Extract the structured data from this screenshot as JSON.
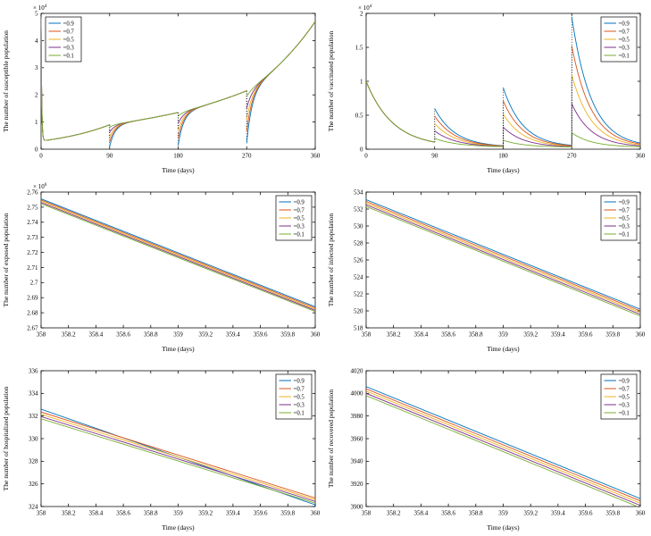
{
  "figure": {
    "background": "#ffffff",
    "axis_color": "#000000",
    "series_colors": [
      "#0072BD",
      "#D95319",
      "#EDB120",
      "#7E2F8E",
      "#77AC30"
    ],
    "legend_labels": [
      "=0.9",
      "=0.7",
      "=0.5",
      "=0.3",
      "=0.1"
    ]
  },
  "chart_data": [
    {
      "id": "susceptible",
      "type": "line",
      "xlabel": "Time (days)",
      "ylabel": "The number of susceptible population",
      "xlim": [
        0,
        360
      ],
      "ylim": [
        0,
        50000
      ],
      "xticks": [
        0,
        90,
        180,
        270,
        360
      ],
      "xtick_labels": [
        "0",
        "90",
        "180",
        "270",
        "360"
      ],
      "yticks": [
        0,
        10000,
        20000,
        30000,
        40000,
        50000
      ],
      "ytick_labels": [
        "0",
        "1",
        "2",
        "3",
        "4",
        "5"
      ],
      "y_exponent": "4",
      "legend_pos": "top-left",
      "generator": "pulse_drop",
      "base_anchors": [
        [
          0,
          3000
        ],
        [
          90,
          9000
        ],
        [
          180,
          13500
        ],
        [
          270,
          21500
        ],
        [
          360,
          47000
        ]
      ],
      "initial_value": 48000,
      "initial_tau": 0.8,
      "pulse_times": [
        90,
        180,
        270
      ],
      "pulse_fractions": [
        0.9,
        0.7,
        0.5,
        0.3,
        0.1
      ],
      "recovery_tau": 7
    },
    {
      "id": "vaccinated",
      "type": "line",
      "xlabel": "Time (days)",
      "ylabel": "The number of vaccinated population",
      "xlim": [
        0,
        360
      ],
      "ylim": [
        0,
        20000
      ],
      "xticks": [
        0,
        90,
        180,
        270,
        360
      ],
      "xtick_labels": [
        "0",
        "90",
        "180",
        "270",
        "360"
      ],
      "yticks": [
        0,
        5000,
        10000,
        15000,
        20000
      ],
      "ytick_labels": [
        "0",
        "0.5",
        "1",
        "1.5",
        "2"
      ],
      "y_exponent": "4",
      "legend_pos": "top-right",
      "generator": "decay_jumps",
      "initial_value": 10000,
      "residual_floor": 300,
      "decay_tau": 35,
      "jump_times": [
        90,
        180,
        270
      ],
      "jump_sizes": [
        5500,
        9500,
        21000
      ],
      "jump_fractions": [
        0.9,
        0.7,
        0.5,
        0.3,
        0.1
      ],
      "jump_decay_tau": 26
    },
    {
      "id": "exposed",
      "type": "line",
      "xlabel": "Time (days)",
      "ylabel": "The number of exposed population",
      "xlim": [
        358,
        360
      ],
      "ylim": [
        2670000,
        2760000
      ],
      "xticks": [
        358,
        358.2,
        358.4,
        358.6,
        358.8,
        359,
        359.2,
        359.4,
        359.6,
        359.8,
        360
      ],
      "xtick_labels": [
        "358",
        "358.2",
        "358.4",
        "358.6",
        "358.8",
        "359",
        "359.2",
        "359.4",
        "359.6",
        "359.8",
        "360"
      ],
      "yticks": [
        2670000,
        2680000,
        2690000,
        2700000,
        2710000,
        2720000,
        2730000,
        2740000,
        2750000,
        2760000
      ],
      "ytick_labels": [
        "2.67",
        "2.68",
        "2.69",
        "2.7",
        "2.71",
        "2.72",
        "2.73",
        "2.74",
        "2.75",
        "2.76"
      ],
      "y_exponent": "6",
      "legend_pos": "top-right",
      "generator": "linear",
      "start_values": [
        2755500,
        2754700,
        2753900,
        2753100,
        2752300
      ],
      "end_values": [
        2684000,
        2683200,
        2682400,
        2681600,
        2680800
      ]
    },
    {
      "id": "infected",
      "type": "line",
      "xlabel": "Time (days)",
      "ylabel": "The number of infected population",
      "xlim": [
        358,
        360
      ],
      "ylim": [
        518,
        534
      ],
      "xticks": [
        358,
        358.2,
        358.4,
        358.6,
        358.8,
        359,
        359.2,
        359.4,
        359.6,
        359.8,
        360
      ],
      "xtick_labels": [
        "358",
        "358.2",
        "358.4",
        "358.6",
        "358.8",
        "359",
        "359.2",
        "359.4",
        "359.6",
        "359.8",
        "360"
      ],
      "yticks": [
        518,
        520,
        522,
        524,
        526,
        528,
        530,
        532,
        534
      ],
      "ytick_labels": [
        "518",
        "520",
        "522",
        "524",
        "526",
        "528",
        "530",
        "532",
        "534"
      ],
      "y_exponent": "",
      "legend_pos": "top-right",
      "generator": "linear",
      "start_values": [
        533.1,
        532.9,
        532.7,
        532.5,
        532.3
      ],
      "end_values": [
        520.2,
        520.0,
        519.8,
        519.6,
        519.4
      ]
    },
    {
      "id": "hospitalized",
      "type": "line",
      "xlabel": "Time (days)",
      "ylabel": "The number of hospitalized population",
      "xlim": [
        358,
        360
      ],
      "ylim": [
        324,
        336
      ],
      "xticks": [
        358,
        358.2,
        358.4,
        358.6,
        358.8,
        359,
        359.2,
        359.4,
        359.6,
        359.8,
        360
      ],
      "xtick_labels": [
        "358",
        "358.2",
        "358.4",
        "358.6",
        "358.8",
        "359",
        "359.2",
        "359.4",
        "359.6",
        "359.8",
        "360"
      ],
      "yticks": [
        324,
        326,
        328,
        330,
        332,
        334,
        336
      ],
      "ytick_labels": [
        "324",
        "326",
        "328",
        "330",
        "332",
        "334",
        "336"
      ],
      "y_exponent": "",
      "legend_pos": "top-right",
      "generator": "linear",
      "start_values": [
        332.6,
        332.35,
        332.15,
        331.95,
        331.75
      ],
      "end_values": [
        324.15,
        324.75,
        324.6,
        324.45,
        324.3
      ]
    },
    {
      "id": "recovered",
      "type": "line",
      "xlabel": "Time (days)",
      "ylabel": "The number of recovered population",
      "xlim": [
        358,
        360
      ],
      "ylim": [
        3900,
        4020
      ],
      "xticks": [
        358,
        358.2,
        358.4,
        358.6,
        358.8,
        359,
        359.2,
        359.4,
        359.6,
        359.8,
        360
      ],
      "xtick_labels": [
        "358",
        "358.2",
        "358.4",
        "358.6",
        "358.8",
        "359",
        "359.2",
        "359.4",
        "359.6",
        "359.8",
        "360"
      ],
      "yticks": [
        3900,
        3920,
        3940,
        3960,
        3980,
        4000,
        4020
      ],
      "ytick_labels": [
        "3900",
        "3920",
        "3940",
        "3960",
        "3980",
        "4000",
        "4020"
      ],
      "y_exponent": "",
      "legend_pos": "top-right",
      "generator": "linear",
      "start_values": [
        4006,
        4004,
        4002,
        4000,
        3998
      ],
      "end_values": [
        3907,
        3905,
        3903,
        3901,
        3899
      ]
    }
  ]
}
